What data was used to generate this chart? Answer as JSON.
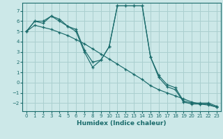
{
  "title": "",
  "xlabel": "Humidex (Indice chaleur)",
  "bg_color": "#cce8e8",
  "grid_color": "#aacfcf",
  "line_color": "#1a6b6b",
  "xlim": [
    -0.5,
    23.5
  ],
  "ylim": [
    -2.8,
    7.8
  ],
  "yticks": [
    -2,
    -1,
    0,
    1,
    2,
    3,
    4,
    5,
    6,
    7
  ],
  "xticks": [
    0,
    1,
    2,
    3,
    4,
    5,
    6,
    7,
    8,
    9,
    10,
    11,
    12,
    13,
    14,
    15,
    16,
    17,
    18,
    19,
    20,
    21,
    22,
    23
  ],
  "line1_x": [
    0,
    1,
    2,
    3,
    4,
    5,
    6,
    7,
    8,
    9,
    10,
    11,
    12,
    13,
    14,
    15,
    16,
    17,
    18,
    19,
    20,
    21,
    22,
    23
  ],
  "line1_y": [
    5.0,
    6.0,
    6.0,
    6.5,
    6.2,
    5.5,
    5.2,
    3.2,
    2.0,
    2.2,
    3.5,
    7.5,
    7.5,
    7.5,
    7.5,
    2.5,
    0.7,
    -0.2,
    -0.5,
    -1.8,
    -2.0,
    -2.0,
    -2.0,
    -2.3
  ],
  "line2_x": [
    0,
    1,
    2,
    3,
    4,
    5,
    6,
    7,
    8,
    9,
    10,
    11,
    12,
    13,
    14,
    15,
    16,
    17,
    18,
    19,
    20,
    21,
    22,
    23
  ],
  "line2_y": [
    5.0,
    6.0,
    5.8,
    6.5,
    6.0,
    5.5,
    5.0,
    3.0,
    1.5,
    2.2,
    3.5,
    7.5,
    7.5,
    7.5,
    7.5,
    2.5,
    0.5,
    -0.4,
    -0.7,
    -1.9,
    -2.1,
    -2.1,
    -2.1,
    -2.4
  ],
  "line3_x": [
    0,
    1,
    2,
    3,
    4,
    5,
    6,
    7,
    8,
    9,
    10,
    11,
    12,
    13,
    14,
    15,
    16,
    17,
    18,
    19,
    20,
    21,
    22,
    23
  ],
  "line3_y": [
    5.0,
    5.6,
    5.4,
    5.2,
    4.9,
    4.6,
    4.2,
    3.8,
    3.3,
    2.8,
    2.3,
    1.8,
    1.3,
    0.8,
    0.3,
    -0.3,
    -0.7,
    -1.0,
    -1.3,
    -1.6,
    -1.9,
    -2.1,
    -2.2,
    -2.4
  ]
}
